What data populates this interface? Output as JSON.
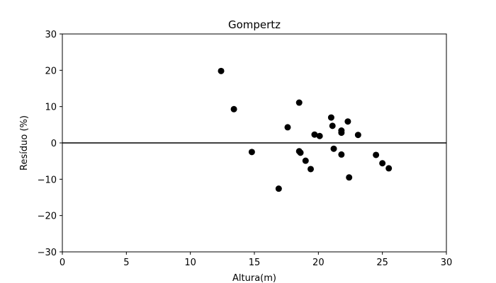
{
  "chart_data": {
    "type": "scatter",
    "title": "Gompertz",
    "xlabel": "Altura(m)",
    "ylabel": "Resíduo (%)",
    "xlim": [
      0,
      30
    ],
    "ylim": [
      -30,
      30
    ],
    "x_ticks": [
      0,
      5,
      10,
      15,
      20,
      25,
      30
    ],
    "y_ticks": [
      -30,
      -20,
      -10,
      0,
      10,
      20,
      30
    ],
    "x_tick_labels": [
      "0",
      "5",
      "10",
      "15",
      "20",
      "25",
      "30"
    ],
    "y_tick_labels": [
      "−30",
      "−20",
      "−10",
      "0",
      "10",
      "20",
      "30"
    ],
    "reference_line_y": 0,
    "grid": false,
    "marker_color": "#000000",
    "points": [
      {
        "x": 12.4,
        "y": 19.8
      },
      {
        "x": 13.4,
        "y": 9.3
      },
      {
        "x": 14.8,
        "y": -2.5
      },
      {
        "x": 16.9,
        "y": -12.6
      },
      {
        "x": 17.6,
        "y": 4.3
      },
      {
        "x": 18.5,
        "y": 11.1
      },
      {
        "x": 18.5,
        "y": -2.3
      },
      {
        "x": 18.6,
        "y": -2.7
      },
      {
        "x": 19.0,
        "y": -4.9
      },
      {
        "x": 19.4,
        "y": -7.2
      },
      {
        "x": 19.7,
        "y": 2.3
      },
      {
        "x": 20.1,
        "y": 1.9
      },
      {
        "x": 21.0,
        "y": 7.0
      },
      {
        "x": 21.1,
        "y": 4.7
      },
      {
        "x": 21.2,
        "y": -1.6
      },
      {
        "x": 21.8,
        "y": 3.4
      },
      {
        "x": 21.8,
        "y": 2.8
      },
      {
        "x": 21.8,
        "y": -3.2
      },
      {
        "x": 22.3,
        "y": 5.9
      },
      {
        "x": 22.4,
        "y": -9.5
      },
      {
        "x": 23.1,
        "y": 2.2
      },
      {
        "x": 24.5,
        "y": -3.3
      },
      {
        "x": 25.0,
        "y": -5.6
      },
      {
        "x": 25.5,
        "y": -7.0
      }
    ]
  }
}
